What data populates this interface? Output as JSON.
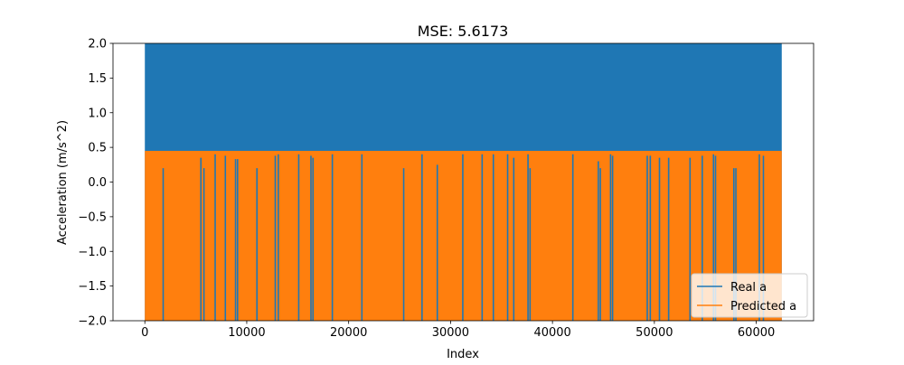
{
  "chart_data": {
    "type": "line",
    "title": "MSE: 5.6173",
    "xlabel": "Index",
    "ylabel": "Acceleration (m/s^2)",
    "xlim": [
      -3125,
      65625
    ],
    "ylim": [
      -2.0,
      2.0
    ],
    "x_ticks": [
      0,
      10000,
      20000,
      30000,
      40000,
      50000,
      60000
    ],
    "x_tick_labels": [
      "0",
      "10000",
      "20000",
      "30000",
      "40000",
      "50000",
      "60000"
    ],
    "y_ticks": [
      -2.0,
      -1.5,
      -1.0,
      -0.5,
      0.0,
      0.5,
      1.0,
      1.5,
      2.0
    ],
    "y_tick_labels": [
      "−2.0",
      "−1.5",
      "−1.0",
      "−0.5",
      "0.0",
      "0.5",
      "1.0",
      "1.5",
      "2.0"
    ],
    "grid": false,
    "legend_position": "lower-right",
    "x_range": [
      0,
      62500
    ],
    "series": [
      {
        "name": "Real a",
        "color": "#1f77b4",
        "envelope_min": -2.0,
        "envelope_max": 2.0
      },
      {
        "name": "Predicted a",
        "color": "#ff7f0e",
        "envelope_min": -2.0,
        "envelope_max": 0.45,
        "dips": [
          {
            "x": 1800,
            "top": 0.2
          },
          {
            "x": 5500,
            "top": 0.35
          },
          {
            "x": 5800,
            "top": 0.2
          },
          {
            "x": 6900,
            "top": 0.4
          },
          {
            "x": 7900,
            "top": 0.38
          },
          {
            "x": 8900,
            "top": 0.33
          },
          {
            "x": 9100,
            "top": 0.33
          },
          {
            "x": 11000,
            "top": 0.2
          },
          {
            "x": 12800,
            "top": 0.38
          },
          {
            "x": 13100,
            "top": 0.4
          },
          {
            "x": 15100,
            "top": 0.4
          },
          {
            "x": 16300,
            "top": 0.38
          },
          {
            "x": 16500,
            "top": 0.35
          },
          {
            "x": 18400,
            "top": 0.4
          },
          {
            "x": 21300,
            "top": 0.4
          },
          {
            "x": 25400,
            "top": 0.2
          },
          {
            "x": 27200,
            "top": 0.4
          },
          {
            "x": 28700,
            "top": 0.25
          },
          {
            "x": 31200,
            "top": 0.4
          },
          {
            "x": 33100,
            "top": 0.4
          },
          {
            "x": 34200,
            "top": 0.4
          },
          {
            "x": 35600,
            "top": 0.4
          },
          {
            "x": 36200,
            "top": 0.35
          },
          {
            "x": 37600,
            "top": 0.4
          },
          {
            "x": 37800,
            "top": 0.2
          },
          {
            "x": 42000,
            "top": 0.4
          },
          {
            "x": 44500,
            "top": 0.3
          },
          {
            "x": 44700,
            "top": 0.2
          },
          {
            "x": 45700,
            "top": 0.4
          },
          {
            "x": 45900,
            "top": 0.38
          },
          {
            "x": 49300,
            "top": 0.38
          },
          {
            "x": 49600,
            "top": 0.38
          },
          {
            "x": 50500,
            "top": 0.35
          },
          {
            "x": 51400,
            "top": 0.35
          },
          {
            "x": 53500,
            "top": 0.35
          },
          {
            "x": 54700,
            "top": 0.38
          },
          {
            "x": 55800,
            "top": 0.4
          },
          {
            "x": 56000,
            "top": 0.38
          },
          {
            "x": 57800,
            "top": 0.2
          },
          {
            "x": 58000,
            "top": 0.2
          },
          {
            "x": 60300,
            "top": 0.4
          },
          {
            "x": 60700,
            "top": 0.38
          }
        ]
      }
    ]
  }
}
